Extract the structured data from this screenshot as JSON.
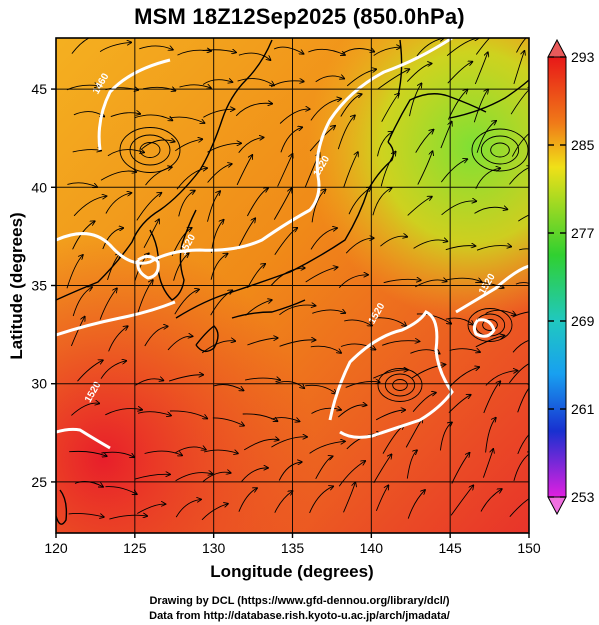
{
  "title": "MSM 18Z12Sep2025 (850.0hPa)",
  "chart_data": {
    "type": "map",
    "title": "MSM 18Z12Sep2025 (850.0hPa)",
    "xlabel": "Longitude (degrees)",
    "ylabel": "Latitude  (degrees)",
    "xlim": [
      120,
      150
    ],
    "ylim": [
      22.4,
      47.6
    ],
    "x_ticks": [
      "120",
      "125",
      "130",
      "135",
      "140",
      "145",
      "150"
    ],
    "y_ticks": [
      "25",
      "30",
      "35",
      "40",
      "45"
    ],
    "grid": true,
    "colorbar": {
      "ticks": [
        "293",
        "285",
        "277",
        "269",
        "261",
        "253"
      ],
      "range": [
        253,
        293
      ]
    },
    "contours": [
      {
        "label": "1460",
        "lon": 123.0,
        "lat": 45.2
      },
      {
        "label": "1520",
        "lon": 137.0,
        "lat": 41.0
      },
      {
        "label": "1520",
        "lon": 128.5,
        "lat": 37.0
      },
      {
        "label": "1520",
        "lon": 140.5,
        "lat": 33.5
      },
      {
        "label": "1520",
        "lon": 147.5,
        "lat": 35.0
      },
      {
        "label": "1520",
        "lon": 122.5,
        "lat": 29.5
      }
    ]
  },
  "credits": {
    "line1": "Drawing by DCL (https://www.gfd-dennou.org/library/dcl/)",
    "line2": "Data from http://database.rish.kyoto-u.ac.jp/arch/jmadata/"
  }
}
